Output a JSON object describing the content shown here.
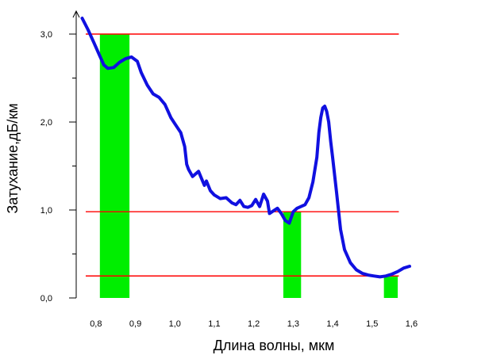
{
  "chart_data": {
    "type": "line",
    "xlabel": "Длина волны, мкм",
    "ylabel": "Затухание,дБ/км",
    "xlim": [
      0.75,
      1.6
    ],
    "ylim": [
      0.0,
      3.2
    ],
    "x_ticks": [
      {
        "value": 0.8,
        "label": "0,8"
      },
      {
        "value": 0.9,
        "label": "0,9"
      },
      {
        "value": 1.0,
        "label": "1,0"
      },
      {
        "value": 1.1,
        "label": "1,1"
      },
      {
        "value": 1.2,
        "label": "1,2"
      },
      {
        "value": 1.3,
        "label": "1,3"
      },
      {
        "value": 1.4,
        "label": "1,4"
      },
      {
        "value": 1.5,
        "label": "1,5"
      },
      {
        "value": 1.6,
        "label": "1,6"
      }
    ],
    "y_ticks": [
      {
        "value": 0.0,
        "label": "0,0"
      },
      {
        "value": 1.0,
        "label": "1,0"
      },
      {
        "value": 2.0,
        "label": "2,0"
      },
      {
        "value": 3.0,
        "label": "3,0"
      }
    ],
    "y_minor_ticks": [
      0.5,
      1.5,
      2.5
    ],
    "series": [
      {
        "color": "#1010e0",
        "x": [
          0.765,
          0.78,
          0.795,
          0.81,
          0.82,
          0.83,
          0.845,
          0.86,
          0.875,
          0.89,
          0.905,
          0.915,
          0.93,
          0.945,
          0.96,
          0.975,
          0.99,
          1.0,
          1.015,
          1.025,
          1.03,
          1.035,
          1.045,
          1.06,
          1.075,
          1.08,
          1.09,
          1.1,
          1.115,
          1.13,
          1.145,
          1.155,
          1.165,
          1.175,
          1.185,
          1.195,
          1.205,
          1.215,
          1.225,
          1.235,
          1.24,
          1.25,
          1.26,
          1.27,
          1.28,
          1.29,
          1.3,
          1.31,
          1.32,
          1.33,
          1.34,
          1.35,
          1.36,
          1.365,
          1.37,
          1.375,
          1.38,
          1.385,
          1.39,
          1.395,
          1.4,
          1.41,
          1.42,
          1.43,
          1.445,
          1.46,
          1.475,
          1.49,
          1.505,
          1.52,
          1.535,
          1.55,
          1.565,
          1.58,
          1.595
        ],
        "values": [
          3.18,
          3.05,
          2.9,
          2.75,
          2.65,
          2.61,
          2.62,
          2.68,
          2.72,
          2.74,
          2.69,
          2.56,
          2.42,
          2.32,
          2.28,
          2.2,
          2.05,
          1.98,
          1.88,
          1.72,
          1.52,
          1.46,
          1.38,
          1.44,
          1.28,
          1.33,
          1.22,
          1.17,
          1.13,
          1.14,
          1.08,
          1.06,
          1.11,
          1.04,
          1.03,
          1.05,
          1.12,
          1.04,
          1.18,
          1.1,
          0.96,
          0.99,
          1.02,
          0.96,
          0.88,
          0.85,
          0.98,
          1.02,
          1.04,
          1.06,
          1.14,
          1.32,
          1.6,
          1.88,
          2.05,
          2.16,
          2.18,
          2.12,
          2.0,
          1.78,
          1.6,
          1.2,
          0.78,
          0.55,
          0.4,
          0.32,
          0.28,
          0.26,
          0.25,
          0.24,
          0.25,
          0.27,
          0.3,
          0.34,
          0.36
        ]
      }
    ],
    "reference_lines": [
      {
        "y": 3.0,
        "color": "#ff0000"
      },
      {
        "y": 0.98,
        "color": "#ff0000"
      },
      {
        "y": 0.25,
        "color": "#ff0000"
      }
    ],
    "window_bars": [
      {
        "x0": 0.81,
        "x1": 0.885,
        "height": 3.0,
        "color": "#00ee00"
      },
      {
        "x0": 1.275,
        "x1": 1.32,
        "height": 0.98,
        "color": "#00ee00"
      },
      {
        "x0": 1.53,
        "x1": 1.565,
        "height": 0.25,
        "color": "#00ee00"
      }
    ],
    "grid": false
  }
}
